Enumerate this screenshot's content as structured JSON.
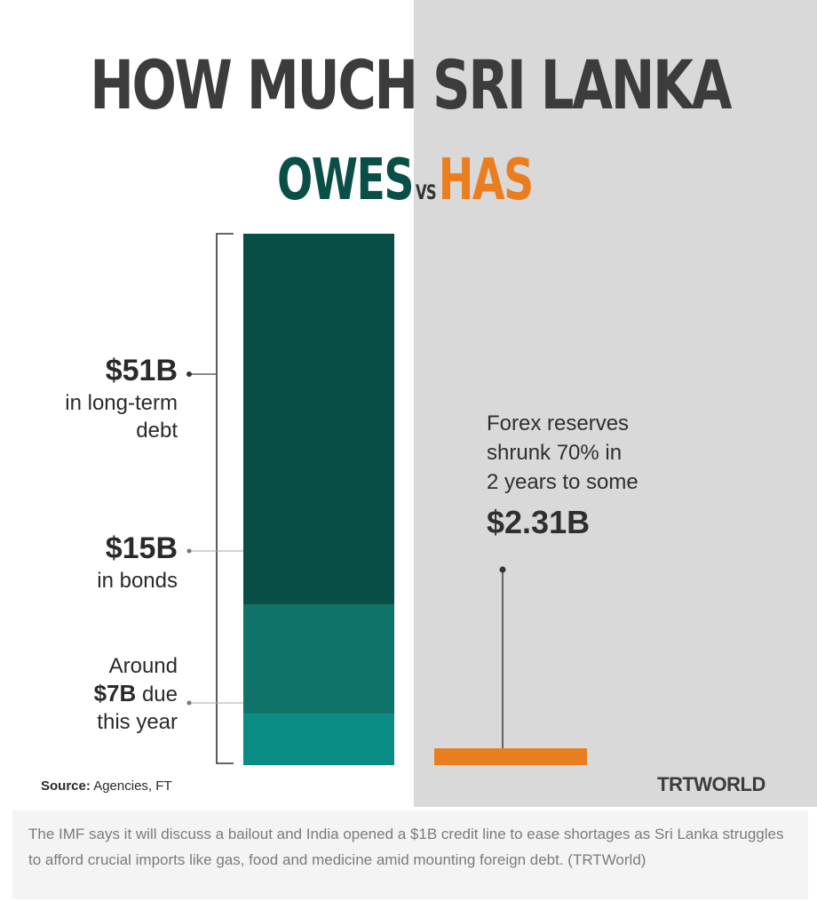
{
  "header": {
    "title": "HOW MUCH SRI LANKA",
    "owes": "OWES",
    "vs": "VS",
    "has": "HAS"
  },
  "labels": {
    "long_term_value": "$51B",
    "long_term_text_1": "in long-term",
    "long_term_text_2": "debt",
    "bonds_value": "$15B",
    "bonds_text": "in bonds",
    "due_text_1": "Around",
    "due_value": "$7B",
    "due_text_2": "due",
    "due_text_3": "this year",
    "forex_line_1": "Forex reserves",
    "forex_line_2": "shrunk 70% in",
    "forex_line_3": "2 years to some",
    "forex_value": "$2.31B"
  },
  "footer": {
    "source_label": "Source:",
    "source_text": "Agencies, FT",
    "logo": "TRTWORLD"
  },
  "caption": "The IMF says it will discuss a bailout and India opened a $1B credit line to ease shortages as Sri Lanka struggles to afford crucial imports like gas, food and medicine amid mounting foreign debt. (TRTWorld)",
  "colors": {
    "owes": "#0a4f47",
    "has": "#ea7d1e",
    "long_term": "#064e46",
    "bonds": "#0e7368",
    "due": "#098c84",
    "forex": "#ea7d1e",
    "panel": "#d9d9d9"
  },
  "chart_data": {
    "type": "bar",
    "categories": [
      "OWES",
      "HAS"
    ],
    "series": [
      {
        "name": "in long-term debt",
        "values": [
          51,
          0
        ]
      },
      {
        "name": "in bonds",
        "values": [
          15,
          0
        ]
      },
      {
        "name": "due this year",
        "values": [
          7,
          0
        ]
      },
      {
        "name": "Forex reserves",
        "values": [
          0,
          2.31
        ]
      }
    ],
    "unit": "$B",
    "stacked": true
  }
}
